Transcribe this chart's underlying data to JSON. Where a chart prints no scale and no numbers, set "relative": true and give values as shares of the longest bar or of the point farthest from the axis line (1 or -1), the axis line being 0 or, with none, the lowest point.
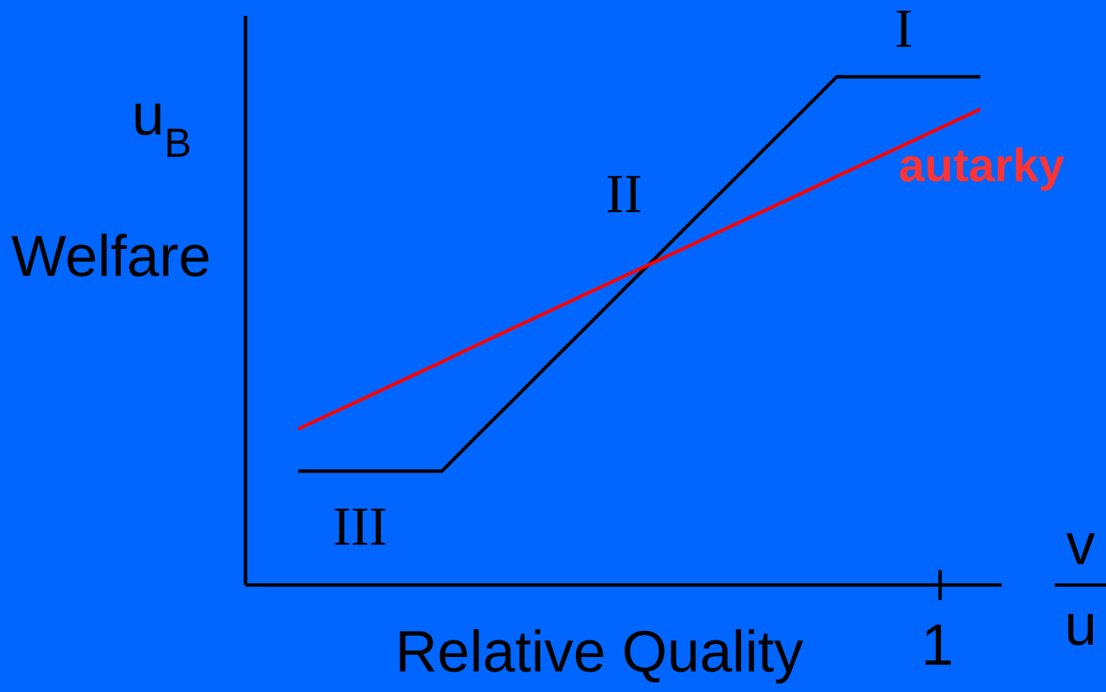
{
  "chart_data": {
    "type": "line",
    "relative": true,
    "xlabel": "Relative Quality",
    "ylabel": "Welfare",
    "categories": [
      null,
      null,
      null,
      null,
      null,
      null,
      null,
      null,
      null,
      null,
      null,
      null,
      null,
      null,
      null,
      null,
      null,
      null,
      null,
      null
    ],
    "marker": "none",
    "line_style": "solid",
    "series": [
      {
        "color": "#000000",
        "values": [
          0.224,
          0.224,
          0.224,
          0.224,
          0.224,
          0.295,
          0.365,
          0.436,
          0.506,
          0.577,
          0.647,
          0.718,
          0.788,
          0.859,
          0.929,
          1,
          1,
          1,
          1,
          1
        ]
      },
      {
        "name": "autarky",
        "color": "#ff0000",
        "values": [
          0.307,
          0.34,
          0.373,
          0.406,
          0.439,
          0.473,
          0.506,
          0.539,
          0.572,
          0.605,
          0.638,
          0.671,
          0.704,
          0.737,
          0.77,
          0.804,
          0.837,
          0.87,
          0.903,
          0.936
        ]
      }
    ],
    "annotations": [
      "u$_{B}$",
      "v",
      "u",
      "I",
      "II",
      "III",
      "1"
    ]
  }
}
